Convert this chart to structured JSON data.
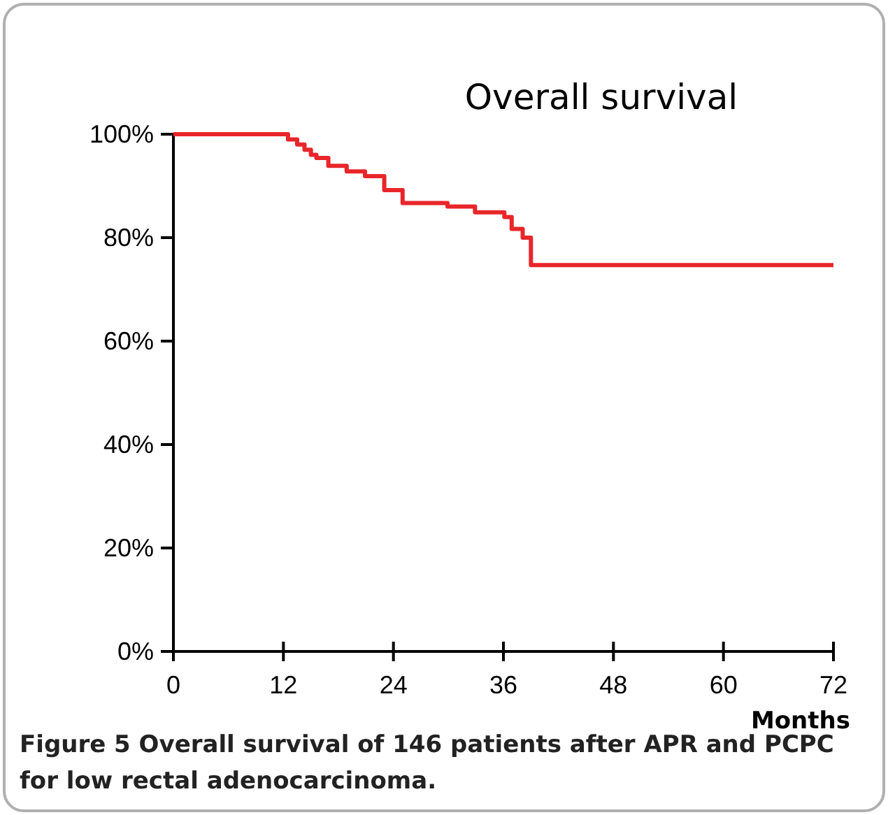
{
  "chart_data": {
    "type": "step",
    "title": "Overall survival",
    "xlabel": "Months",
    "annotations": [
      "Figure 5 Overall survival of 146 patients after APR and PCPC for low rectal adenocarcinoma."
    ],
    "x": [
      0,
      12.5,
      13.5,
      14.3,
      15,
      15.6,
      16.9,
      18.9,
      20.9,
      23,
      25,
      29.9,
      32.9,
      36.1,
      36.9,
      38.1,
      39,
      72
    ],
    "series": [
      {
        "color": "#e8262a",
        "values": [
          100,
          99,
          98,
          97,
          96,
          95.4,
          93.9,
          92.8,
          91.9,
          89.2,
          86.7,
          86,
          84.9,
          84,
          81.7,
          80,
          74.7,
          74.7
        ]
      }
    ],
    "xlim": [
      0,
      72
    ],
    "xticks": [
      0,
      12,
      24,
      36,
      48,
      60,
      72
    ],
    "ylim": [
      0,
      100
    ],
    "yticks": [
      {
        "value": 0,
        "label": "0%"
      },
      {
        "value": 20,
        "label": "20%"
      },
      {
        "value": 40,
        "label": "40%"
      },
      {
        "value": 60,
        "label": "60%"
      },
      {
        "value": 80,
        "label": "80%"
      },
      {
        "value": 100,
        "label": "100%"
      }
    ],
    "grid": false,
    "marker": "none",
    "line_style": "solid"
  }
}
